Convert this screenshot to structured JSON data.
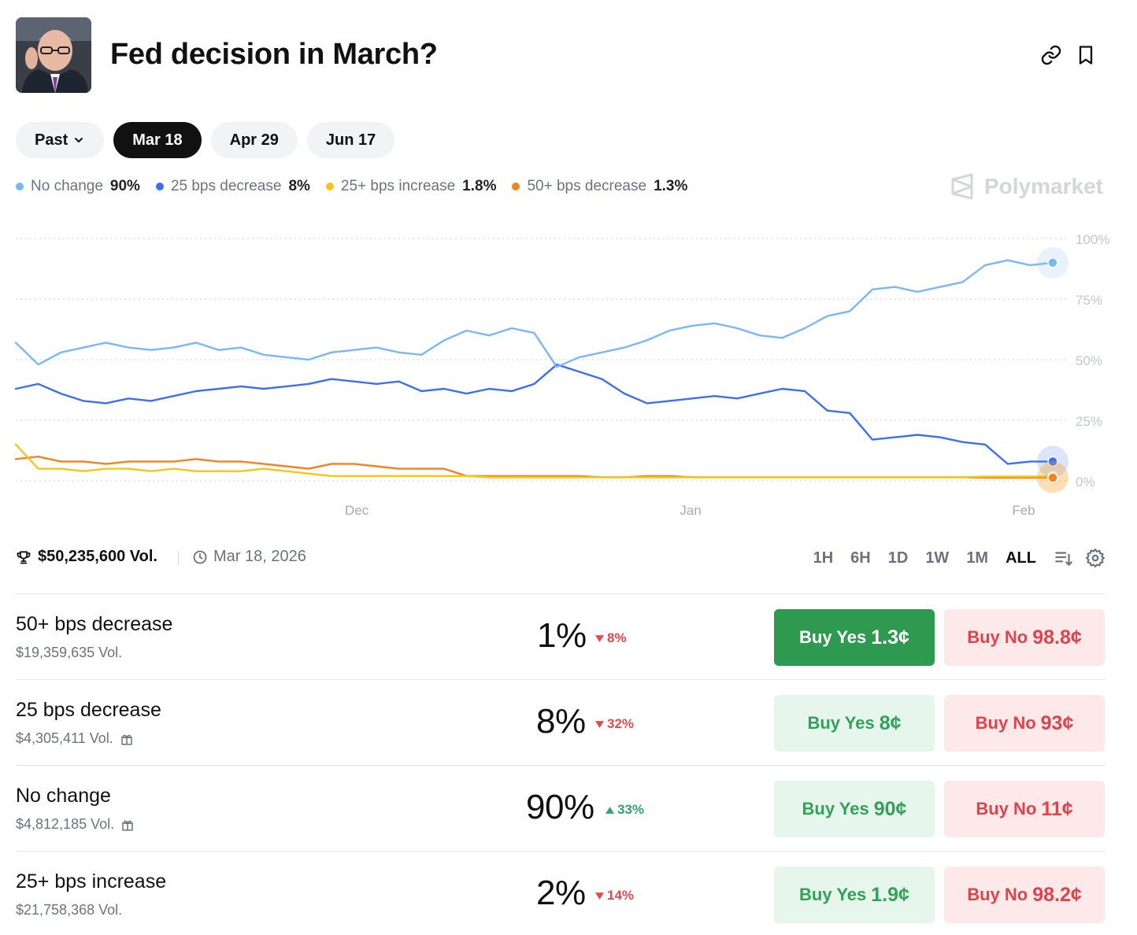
{
  "header": {
    "title": "Fed decision in March?"
  },
  "date_pills": [
    {
      "label": "Past",
      "active": false,
      "dropdown": true
    },
    {
      "label": "Mar 18",
      "active": true
    },
    {
      "label": "Apr 29",
      "active": false
    },
    {
      "label": "Jun 17",
      "active": false
    }
  ],
  "legend": [
    {
      "label": "No change",
      "value": "90%",
      "color": "#7ab8f5"
    },
    {
      "label": "25 bps decrease",
      "value": "8%",
      "color": "#3d6ff0"
    },
    {
      "label": "25+ bps increase",
      "value": "1.8%",
      "color": "#f5c518"
    },
    {
      "label": "50+ bps decrease",
      "value": "1.3%",
      "color": "#f5821f"
    }
  ],
  "brand": {
    "name": "Polymarket"
  },
  "chart_data": {
    "type": "line",
    "x_ticks": [
      "Dec",
      "Jan",
      "Feb"
    ],
    "y_ticks": [
      "100%",
      "75%",
      "50%",
      "25%",
      "0%"
    ],
    "ylim": [
      0,
      100
    ],
    "series": [
      {
        "name": "No change",
        "color": "#7ab8f5",
        "values": [
          57,
          48,
          53,
          55,
          57,
          55,
          54,
          55,
          57,
          54,
          55,
          52,
          51,
          50,
          53,
          54,
          55,
          53,
          52,
          58,
          62,
          60,
          63,
          61,
          47,
          51,
          53,
          55,
          58,
          62,
          64,
          65,
          63,
          60,
          59,
          63,
          68,
          70,
          79,
          80,
          78,
          80,
          82,
          89,
          91,
          89,
          90
        ]
      },
      {
        "name": "25 bps decrease",
        "color": "#3d6ff0",
        "values": [
          38,
          40,
          36,
          33,
          32,
          34,
          33,
          35,
          37,
          38,
          39,
          38,
          39,
          40,
          42,
          41,
          40,
          41,
          37,
          38,
          36,
          38,
          37,
          40,
          48,
          45,
          42,
          36,
          32,
          33,
          34,
          35,
          34,
          36,
          38,
          37,
          29,
          28,
          17,
          18,
          19,
          18,
          16,
          15,
          7,
          8,
          8
        ]
      },
      {
        "name": "25+ bps increase",
        "color": "#f5c518",
        "values": [
          15,
          5,
          5,
          4,
          5,
          5,
          4,
          5,
          4,
          4,
          4,
          5,
          4,
          3,
          2,
          2,
          2,
          2,
          2,
          2,
          2,
          1.5,
          1.5,
          1.5,
          1.5,
          1.5,
          1.5,
          1.5,
          1.5,
          1.5,
          1.5,
          1.5,
          1.5,
          1.5,
          1.5,
          1.5,
          1.5,
          1.5,
          1.5,
          1.5,
          1.5,
          1.5,
          1.5,
          1.8,
          1.8,
          1.8,
          1.8
        ]
      },
      {
        "name": "50+ bps decrease",
        "color": "#f5821f",
        "values": [
          9,
          10,
          8,
          8,
          7,
          8,
          8,
          8,
          9,
          8,
          8,
          7,
          6,
          5,
          7,
          7,
          6,
          5,
          5,
          5,
          2,
          2,
          2,
          2,
          2,
          2,
          1.5,
          1.5,
          2,
          2,
          1.5,
          1.5,
          1.5,
          1.5,
          1.5,
          1.5,
          1.5,
          1.5,
          1.5,
          1.5,
          1.5,
          1.5,
          1.5,
          1.3,
          1.3,
          1.3,
          1.3
        ]
      }
    ]
  },
  "stats": {
    "volume": "$50,235,600 Vol.",
    "end_date": "Mar 18, 2026",
    "ranges": [
      {
        "label": "1H",
        "active": false
      },
      {
        "label": "6H",
        "active": false
      },
      {
        "label": "1D",
        "active": false
      },
      {
        "label": "1W",
        "active": false
      },
      {
        "label": "1M",
        "active": false
      },
      {
        "label": "ALL",
        "active": true
      }
    ]
  },
  "outcomes": [
    {
      "name": "50+ bps decrease",
      "volume": "$19,359,635 Vol.",
      "gift": false,
      "pct": "1%",
      "change": "8%",
      "direction": "down",
      "yes_label": "Buy Yes",
      "yes_price": "1.3¢",
      "no_label": "Buy No",
      "no_price": "98.8¢",
      "highlight": true
    },
    {
      "name": "25 bps decrease",
      "volume": "$4,305,411 Vol.",
      "gift": true,
      "pct": "8%",
      "change": "32%",
      "direction": "down",
      "yes_label": "Buy Yes",
      "yes_price": "8¢",
      "no_label": "Buy No",
      "no_price": "93¢",
      "highlight": false
    },
    {
      "name": "No change",
      "volume": "$4,812,185 Vol.",
      "gift": true,
      "pct": "90%",
      "change": "33%",
      "direction": "up",
      "yes_label": "Buy Yes",
      "yes_price": "90¢",
      "no_label": "Buy No",
      "no_price": "11¢",
      "highlight": false
    },
    {
      "name": "25+ bps increase",
      "volume": "$21,758,368 Vol.",
      "gift": false,
      "pct": "2%",
      "change": "14%",
      "direction": "down",
      "yes_label": "Buy Yes",
      "yes_price": "1.9¢",
      "no_label": "Buy No",
      "no_price": "98.2¢",
      "highlight": false
    }
  ]
}
